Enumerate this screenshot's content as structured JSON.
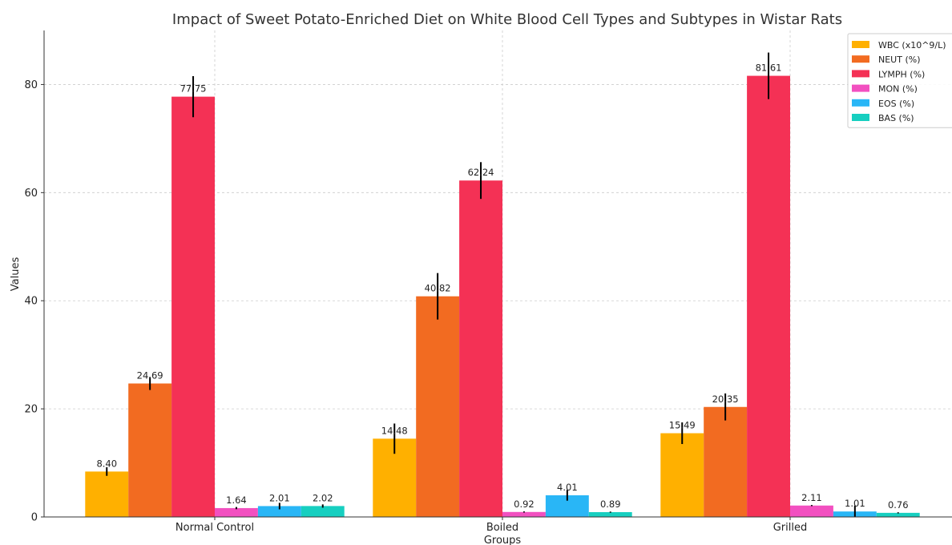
{
  "chart_data": {
    "type": "bar",
    "title": "Impact of Sweet Potato-Enriched Diet on White Blood Cell Types and Subtypes in Wistar Rats",
    "xlabel": "Groups",
    "ylabel": "Values",
    "ylim": [
      0,
      90
    ],
    "yticks": [
      0,
      20,
      40,
      60,
      80
    ],
    "grid": true,
    "legend_position": "top-right",
    "categories": [
      "Normal Control",
      "Boiled",
      "Grilled"
    ],
    "series": [
      {
        "name": "WBC (x10^9/L)",
        "color": "#FFB000",
        "values": [
          8.4,
          14.48,
          15.49
        ],
        "errors": [
          0.8,
          2.8,
          2.0
        ],
        "labels": [
          "8.40",
          "14.48",
          "15.49"
        ]
      },
      {
        "name": "NEUT (%)",
        "color": "#F26B21",
        "values": [
          24.69,
          40.82,
          20.35
        ],
        "errors": [
          1.2,
          4.3,
          2.5
        ],
        "labels": [
          "24.69",
          "40.82",
          "20.35"
        ]
      },
      {
        "name": "LYMPH (%)",
        "color": "#F43155",
        "values": [
          77.75,
          62.24,
          81.61
        ],
        "errors": [
          3.8,
          3.4,
          4.3
        ],
        "labels": [
          "77.75",
          "62.24",
          "81.61"
        ]
      },
      {
        "name": "MON (%)",
        "color": "#F250C0",
        "values": [
          1.64,
          0.92,
          2.11
        ],
        "errors": [
          0.2,
          0.1,
          0.1
        ],
        "labels": [
          "1.64",
          "0.92",
          "2.11"
        ]
      },
      {
        "name": "EOS (%)",
        "color": "#29B6F6",
        "values": [
          2.01,
          4.01,
          1.01
        ],
        "errors": [
          0.6,
          1.0,
          1.1
        ],
        "labels": [
          "2.01",
          "4.01",
          "1.01"
        ]
      },
      {
        "name": "BAS (%)",
        "color": "#17CFC0",
        "values": [
          2.02,
          0.89,
          0.76
        ],
        "errors": [
          0.3,
          0.1,
          0.1
        ],
        "labels": [
          "2.02",
          "0.89",
          "0.76"
        ]
      }
    ]
  }
}
